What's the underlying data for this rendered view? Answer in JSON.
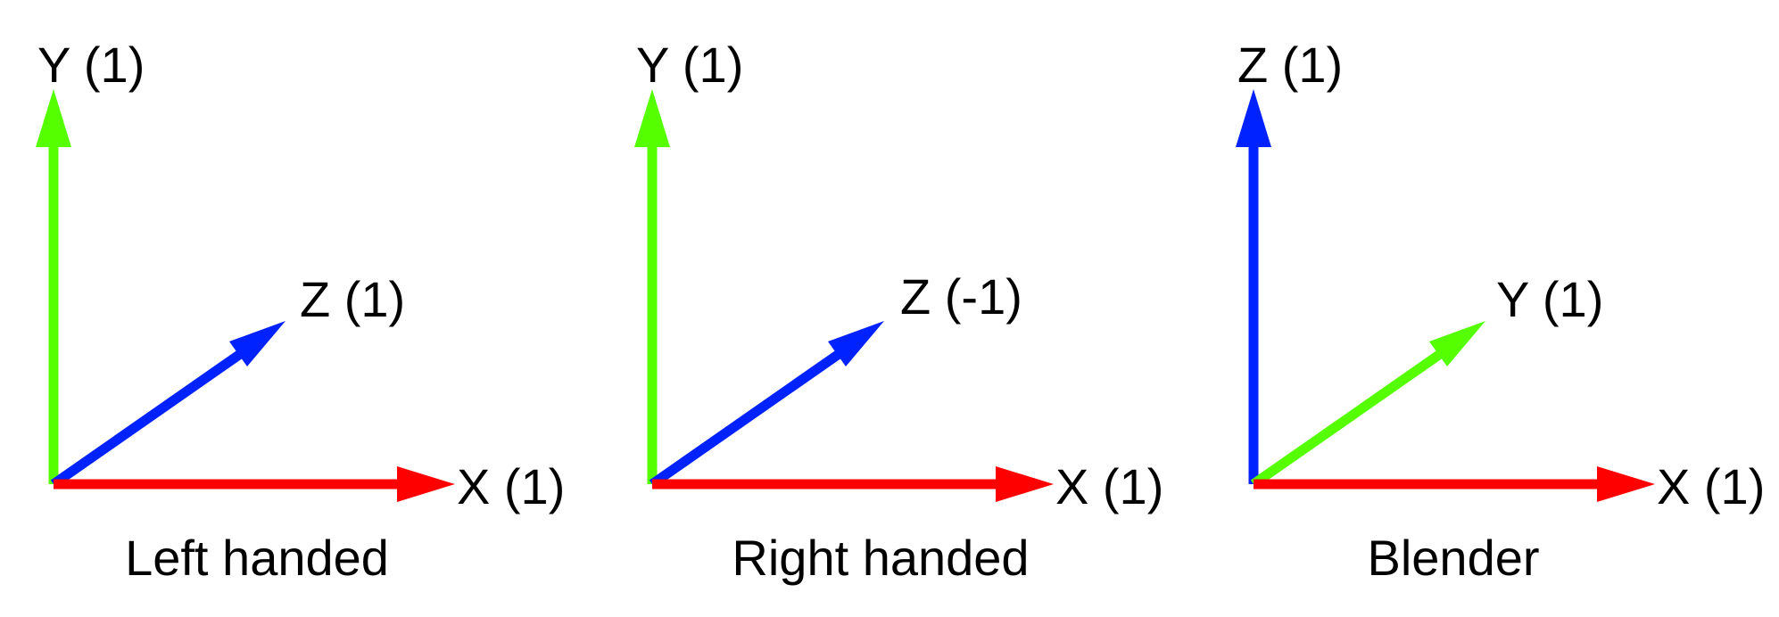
{
  "colors": {
    "red": "#ff0000",
    "green": "#55ff00",
    "blue": "#0022ff",
    "text": "#000000"
  },
  "panels": [
    {
      "caption": "Left handed",
      "up_label": "Y (1)",
      "up_color": "green",
      "diag_label": "Z (1)",
      "diag_color": "blue",
      "right_label": "X (1)",
      "right_color": "red"
    },
    {
      "caption": "Right handed",
      "up_label": "Y (1)",
      "up_color": "green",
      "diag_label": "Z (-1)",
      "diag_color": "blue",
      "right_label": "X (1)",
      "right_color": "red"
    },
    {
      "caption": "Blender",
      "up_label": "Z (1)",
      "up_color": "blue",
      "diag_label": "Y (1)",
      "diag_color": "green",
      "right_label": "X (1)",
      "right_color": "red"
    }
  ]
}
